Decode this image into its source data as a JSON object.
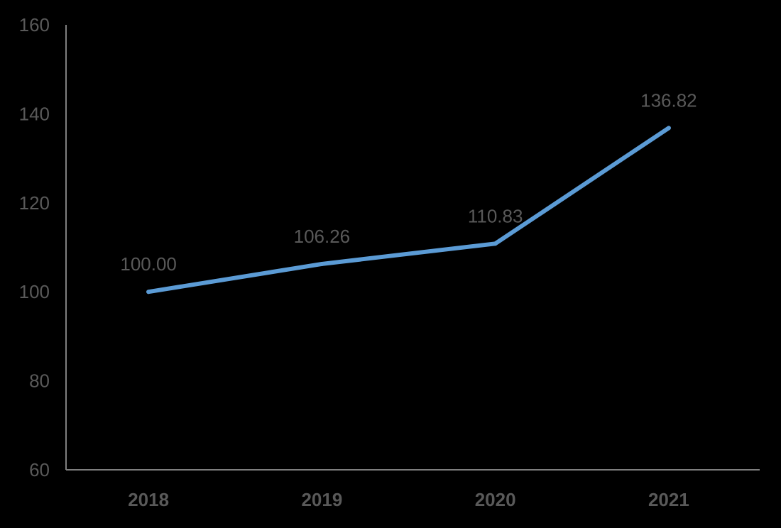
{
  "chart_data": {
    "type": "line",
    "categories": [
      "2018",
      "2019",
      "2020",
      "2021"
    ],
    "series": [
      {
        "values": [
          100.0,
          106.26,
          110.83,
          136.82
        ],
        "labels": [
          "100.00",
          "106.26",
          "110.83",
          "136.82"
        ]
      }
    ],
    "ylim": [
      60,
      160
    ],
    "yticks": [
      "60",
      "80",
      "100",
      "120",
      "140",
      "160"
    ],
    "grid": false,
    "legend": "none",
    "colors": {
      "line": "#5B9BD5",
      "axis": "#7F7F7F",
      "text": "#595959",
      "background": "#000000"
    }
  }
}
